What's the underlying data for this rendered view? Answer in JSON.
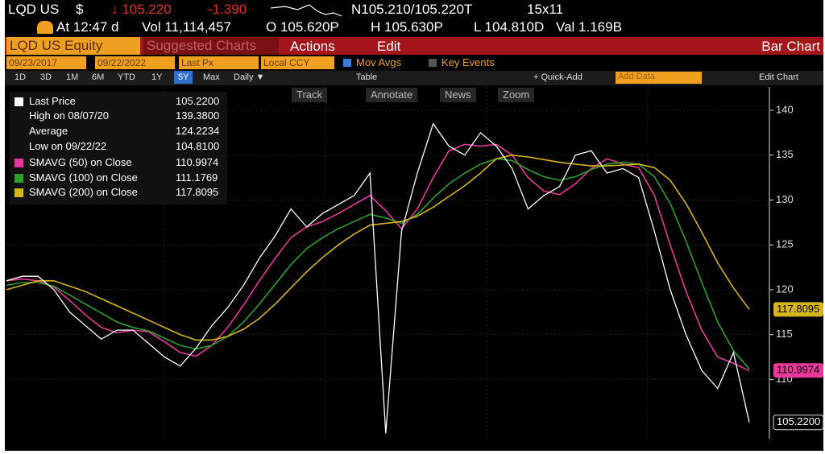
{
  "header": {
    "ticker": "LQD US",
    "currency": "$",
    "price": "↓ 105.220",
    "change": "-1.390",
    "bid_ask": "N105.210/105.220T",
    "size": "15x11",
    "time": "At 12:47 d",
    "volume": "Vol 11,114,457",
    "open": "O 105.620P",
    "high": "H 105.630P",
    "low": "L 104.810D",
    "val": "Val 1.169B"
  },
  "menu": {
    "security": "LQD US Equity",
    "suggested": "Suggested Charts",
    "actions": "Actions",
    "edit": "Edit",
    "chart_kind": "Bar Chart"
  },
  "controls": {
    "start_date": "09/23/2017",
    "end_date": "09/22/2022",
    "field": "Last Px",
    "currency": "Local CCY",
    "mov_avgs": "Mov Avgs",
    "key_events": "Key Events"
  },
  "periods": [
    "1D",
    "3D",
    "1M",
    "6M",
    "YTD",
    "1Y",
    "5Y",
    "Max"
  ],
  "frequency": "Daily ▼",
  "tools": {
    "table": "Table",
    "quick_add": "+ Quick-Add",
    "add_data": "Add Data",
    "edit_chart": "Edit Chart",
    "track": "Track",
    "annotate": "Annotate",
    "news": "News",
    "zoom": "Zoom"
  },
  "chart_data": {
    "type": "line",
    "ylim": [
      103.4,
      142.6
    ],
    "yticks": [
      110,
      115,
      120,
      125,
      130,
      135,
      140
    ],
    "stats": [
      {
        "label": "High on 08/07/20",
        "value": "139.3800"
      },
      {
        "label": "Average",
        "value": "124.2234"
      },
      {
        "label": "Low on 09/22/22",
        "value": "104.8100"
      }
    ],
    "series": [
      {
        "name": "Last Price",
        "color": "#ffffff",
        "last_label": "105.2200",
        "values": [
          121,
          121.5,
          121.5,
          120,
          117.5,
          116,
          114.5,
          115.5,
          115.5,
          114,
          112.5,
          111.5,
          113.5,
          116,
          118,
          120.5,
          123.5,
          126,
          129,
          127,
          128.5,
          129.5,
          130.5,
          133,
          104,
          126.5,
          133,
          138.5,
          136,
          135,
          137.5,
          136,
          133.5,
          129,
          130.5,
          131.5,
          135,
          135.5,
          133,
          133.5,
          132.5,
          126.5,
          120,
          115,
          111,
          109,
          113,
          105.22
        ]
      },
      {
        "name": "SMAVG (50)  on Close",
        "color": "#e6399b",
        "last_label": "110.9974",
        "values": [
          121,
          121.2,
          121,
          120.3,
          118.8,
          117.2,
          115.8,
          115.2,
          115.5,
          115.3,
          114.2,
          113,
          112.6,
          113.8,
          115.8,
          118.3,
          121,
          123.5,
          125.8,
          127,
          127.6,
          128.5,
          129.5,
          130.5,
          128.8,
          126.8,
          129,
          132.5,
          135.5,
          136.2,
          136,
          136.2,
          135,
          132.5,
          131,
          130.6,
          131.8,
          133.5,
          134.6,
          134,
          133.6,
          130.5,
          125,
          119.8,
          115.5,
          112.5,
          111.8,
          110.9974
        ]
      },
      {
        "name": "SMAVG (100)  on Close",
        "color": "#2e9e2e",
        "last_label": "111.1769",
        "values": [
          120.5,
          120.8,
          120.8,
          120.4,
          119.4,
          118.4,
          117.4,
          116.4,
          115.8,
          115.4,
          114.6,
          113.8,
          113.4,
          113.8,
          114.8,
          116.4,
          118.4,
          120.6,
          122.8,
          124.6,
          125.8,
          126.8,
          127.6,
          128.4,
          128,
          127.4,
          128.4,
          130.2,
          131.8,
          133,
          134,
          134.6,
          134.4,
          133.4,
          132.6,
          132.2,
          132.6,
          133.4,
          134,
          134.2,
          134,
          132.6,
          129.6,
          125.4,
          120.8,
          116.4,
          113.2,
          111.1769
        ]
      },
      {
        "name": "SMAVG (200)  on Close",
        "color": "#d4b51a",
        "last_label": "117.8095",
        "values": [
          120,
          120.5,
          121,
          121,
          120.4,
          119.8,
          119,
          118.2,
          117.4,
          116.6,
          115.8,
          115,
          114.4,
          114.4,
          114.8,
          115.6,
          116.8,
          118.4,
          120.2,
          122,
          123.6,
          125,
          126.2,
          127.2,
          127.4,
          127.6,
          128.2,
          129.2,
          130.4,
          131.6,
          133,
          134.6,
          135,
          134.8,
          134.5,
          134.2,
          134,
          133.8,
          133.8,
          133.9,
          134,
          133.6,
          132.2,
          129.6,
          126.4,
          123,
          120.2,
          117.8095
        ]
      }
    ]
  }
}
